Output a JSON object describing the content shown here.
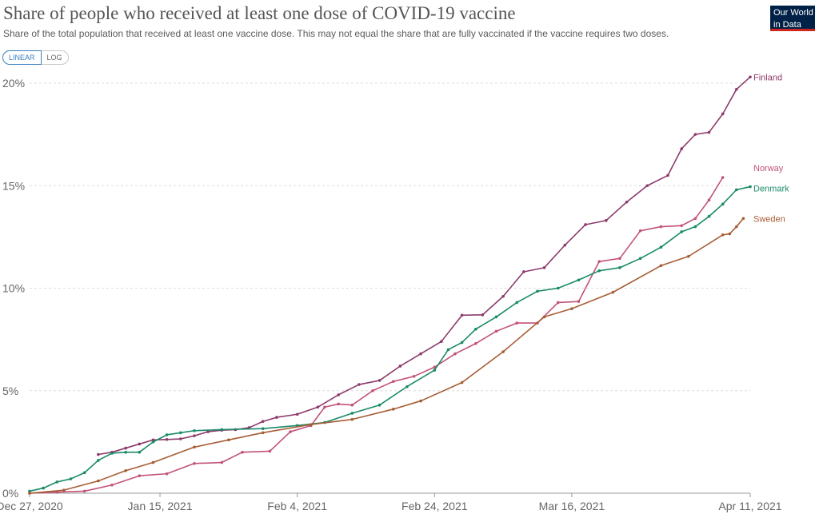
{
  "header": {
    "title": "Share of people who received at least one dose of COVID-19 vaccine",
    "subtitle": "Share of the total population that received at least one vaccine dose. This may not equal the share that are fully vaccinated if the vaccine requires two doses.",
    "logo_line1": "Our World",
    "logo_line2": "in Data"
  },
  "controls": {
    "linear_label": "LINEAR",
    "log_label": "LOG",
    "selected": "LINEAR"
  },
  "colors": {
    "Finland": "#8c3b6b",
    "Norway": "#c2527a",
    "Denmark": "#1a8a68",
    "Sweden": "#a65d34",
    "grid": "#dddddd",
    "axis": "#999999"
  },
  "chart_data": {
    "type": "line",
    "title": "Share of people who received at least one dose of COVID-19 vaccine",
    "ylim": [
      0,
      20
    ],
    "xlim": [
      "2020-12-27",
      "2021-04-11"
    ],
    "y_ticks": [
      "0%",
      "5%",
      "10%",
      "15%",
      "20%"
    ],
    "y_tick_values": [
      0,
      5,
      10,
      15,
      20
    ],
    "x_ticks": [
      "Dec 27, 2020",
      "Jan 15, 2021",
      "Feb 4, 2021",
      "Feb 24, 2021",
      "Mar 16, 2021",
      "Apr 11, 2021"
    ],
    "x_tick_dates": [
      "2020-12-27",
      "2021-01-15",
      "2021-02-04",
      "2021-02-24",
      "2021-03-16",
      "2021-04-11"
    ],
    "grid": true,
    "legend": "labels at line ends",
    "series": [
      {
        "name": "Finland",
        "points": [
          [
            "2021-01-06",
            1.89
          ],
          [
            "2021-01-08",
            2.0
          ],
          [
            "2021-01-10",
            2.2
          ],
          [
            "2021-01-12",
            2.4
          ],
          [
            "2021-01-14",
            2.6
          ],
          [
            "2021-01-16",
            2.62
          ],
          [
            "2021-01-18",
            2.65
          ],
          [
            "2021-01-20",
            2.8
          ],
          [
            "2021-01-22",
            3.0
          ],
          [
            "2021-01-24",
            3.07
          ],
          [
            "2021-01-26",
            3.1
          ],
          [
            "2021-01-28",
            3.2
          ],
          [
            "2021-01-30",
            3.5
          ],
          [
            "2021-02-01",
            3.7
          ],
          [
            "2021-02-04",
            3.85
          ],
          [
            "2021-02-07",
            4.2
          ],
          [
            "2021-02-10",
            4.8
          ],
          [
            "2021-02-13",
            5.3
          ],
          [
            "2021-02-16",
            5.5
          ],
          [
            "2021-02-19",
            6.2
          ],
          [
            "2021-02-22",
            6.8
          ],
          [
            "2021-02-25",
            7.4
          ],
          [
            "2021-02-28",
            8.68
          ],
          [
            "2021-03-03",
            8.7
          ],
          [
            "2021-03-06",
            9.6
          ],
          [
            "2021-03-09",
            10.8
          ],
          [
            "2021-03-12",
            11.0
          ],
          [
            "2021-03-15",
            12.1
          ],
          [
            "2021-03-18",
            13.1
          ],
          [
            "2021-03-21",
            13.3
          ],
          [
            "2021-03-24",
            14.2
          ],
          [
            "2021-03-27",
            15.0
          ],
          [
            "2021-03-30",
            15.5
          ],
          [
            "2021-04-01",
            16.8
          ],
          [
            "2021-04-03",
            17.5
          ],
          [
            "2021-04-05",
            17.6
          ],
          [
            "2021-04-07",
            18.5
          ],
          [
            "2021-04-09",
            19.7
          ],
          [
            "2021-04-11",
            20.3
          ]
        ]
      },
      {
        "name": "Norway",
        "points": [
          [
            "2020-12-27",
            0.0
          ],
          [
            "2020-12-31",
            0.05
          ],
          [
            "2021-01-04",
            0.1
          ],
          [
            "2021-01-08",
            0.4
          ],
          [
            "2021-01-12",
            0.85
          ],
          [
            "2021-01-16",
            0.95
          ],
          [
            "2021-01-20",
            1.45
          ],
          [
            "2021-01-24",
            1.5
          ],
          [
            "2021-01-27",
            2.0
          ],
          [
            "2021-01-31",
            2.05
          ],
          [
            "2021-02-03",
            3.0
          ],
          [
            "2021-02-06",
            3.3
          ],
          [
            "2021-02-08",
            4.2
          ],
          [
            "2021-02-10",
            4.35
          ],
          [
            "2021-02-12",
            4.3
          ],
          [
            "2021-02-15",
            5.0
          ],
          [
            "2021-02-18",
            5.45
          ],
          [
            "2021-02-21",
            5.7
          ],
          [
            "2021-02-24",
            6.15
          ],
          [
            "2021-02-27",
            6.8
          ],
          [
            "2021-03-02",
            7.3
          ],
          [
            "2021-03-05",
            7.9
          ],
          [
            "2021-03-08",
            8.3
          ],
          [
            "2021-03-11",
            8.3
          ],
          [
            "2021-03-14",
            9.3
          ],
          [
            "2021-03-17",
            9.35
          ],
          [
            "2021-03-20",
            11.3
          ],
          [
            "2021-03-23",
            11.45
          ],
          [
            "2021-03-26",
            12.8
          ],
          [
            "2021-03-29",
            13.0
          ],
          [
            "2021-04-01",
            13.05
          ],
          [
            "2021-04-03",
            13.4
          ],
          [
            "2021-04-05",
            14.3
          ],
          [
            "2021-04-07",
            15.4
          ]
        ]
      },
      {
        "name": "Denmark",
        "points": [
          [
            "2020-12-27",
            0.1
          ],
          [
            "2020-12-29",
            0.25
          ],
          [
            "2020-12-31",
            0.55
          ],
          [
            "2021-01-02",
            0.7
          ],
          [
            "2021-01-04",
            1.0
          ],
          [
            "2021-01-06",
            1.6
          ],
          [
            "2021-01-08",
            1.95
          ],
          [
            "2021-01-10",
            2.0
          ],
          [
            "2021-01-12",
            2.0
          ],
          [
            "2021-01-14",
            2.5
          ],
          [
            "2021-01-16",
            2.85
          ],
          [
            "2021-01-18",
            2.95
          ],
          [
            "2021-01-20",
            3.05
          ],
          [
            "2021-01-24",
            3.1
          ],
          [
            "2021-01-30",
            3.15
          ],
          [
            "2021-02-04",
            3.3
          ],
          [
            "2021-02-08",
            3.45
          ],
          [
            "2021-02-12",
            3.9
          ],
          [
            "2021-02-16",
            4.3
          ],
          [
            "2021-02-20",
            5.2
          ],
          [
            "2021-02-24",
            6.0
          ],
          [
            "2021-02-26",
            7.0
          ],
          [
            "2021-02-28",
            7.35
          ],
          [
            "2021-03-02",
            8.0
          ],
          [
            "2021-03-05",
            8.6
          ],
          [
            "2021-03-08",
            9.3
          ],
          [
            "2021-03-11",
            9.85
          ],
          [
            "2021-03-14",
            10.0
          ],
          [
            "2021-03-17",
            10.4
          ],
          [
            "2021-03-20",
            10.85
          ],
          [
            "2021-03-23",
            11.0
          ],
          [
            "2021-03-26",
            11.45
          ],
          [
            "2021-03-29",
            12.0
          ],
          [
            "2021-04-01",
            12.75
          ],
          [
            "2021-04-03",
            13.0
          ],
          [
            "2021-04-05",
            13.5
          ],
          [
            "2021-04-07",
            14.1
          ],
          [
            "2021-04-09",
            14.8
          ],
          [
            "2021-04-11",
            14.95
          ]
        ]
      },
      {
        "name": "Sweden",
        "points": [
          [
            "2020-12-27",
            0.0
          ],
          [
            "2021-01-01",
            0.15
          ],
          [
            "2021-01-06",
            0.6
          ],
          [
            "2021-01-10",
            1.1
          ],
          [
            "2021-01-14",
            1.5
          ],
          [
            "2021-01-20",
            2.25
          ],
          [
            "2021-01-25",
            2.6
          ],
          [
            "2021-01-30",
            2.95
          ],
          [
            "2021-02-06",
            3.35
          ],
          [
            "2021-02-12",
            3.6
          ],
          [
            "2021-02-18",
            4.1
          ],
          [
            "2021-02-22",
            4.5
          ],
          [
            "2021-02-28",
            5.4
          ],
          [
            "2021-03-06",
            6.9
          ],
          [
            "2021-03-12",
            8.6
          ],
          [
            "2021-03-16",
            9.0
          ],
          [
            "2021-03-22",
            9.8
          ],
          [
            "2021-03-29",
            11.1
          ],
          [
            "2021-04-02",
            11.55
          ],
          [
            "2021-04-07",
            12.6
          ],
          [
            "2021-04-08",
            12.65
          ],
          [
            "2021-04-09",
            13.0
          ],
          [
            "2021-04-10",
            13.4
          ]
        ]
      }
    ]
  }
}
